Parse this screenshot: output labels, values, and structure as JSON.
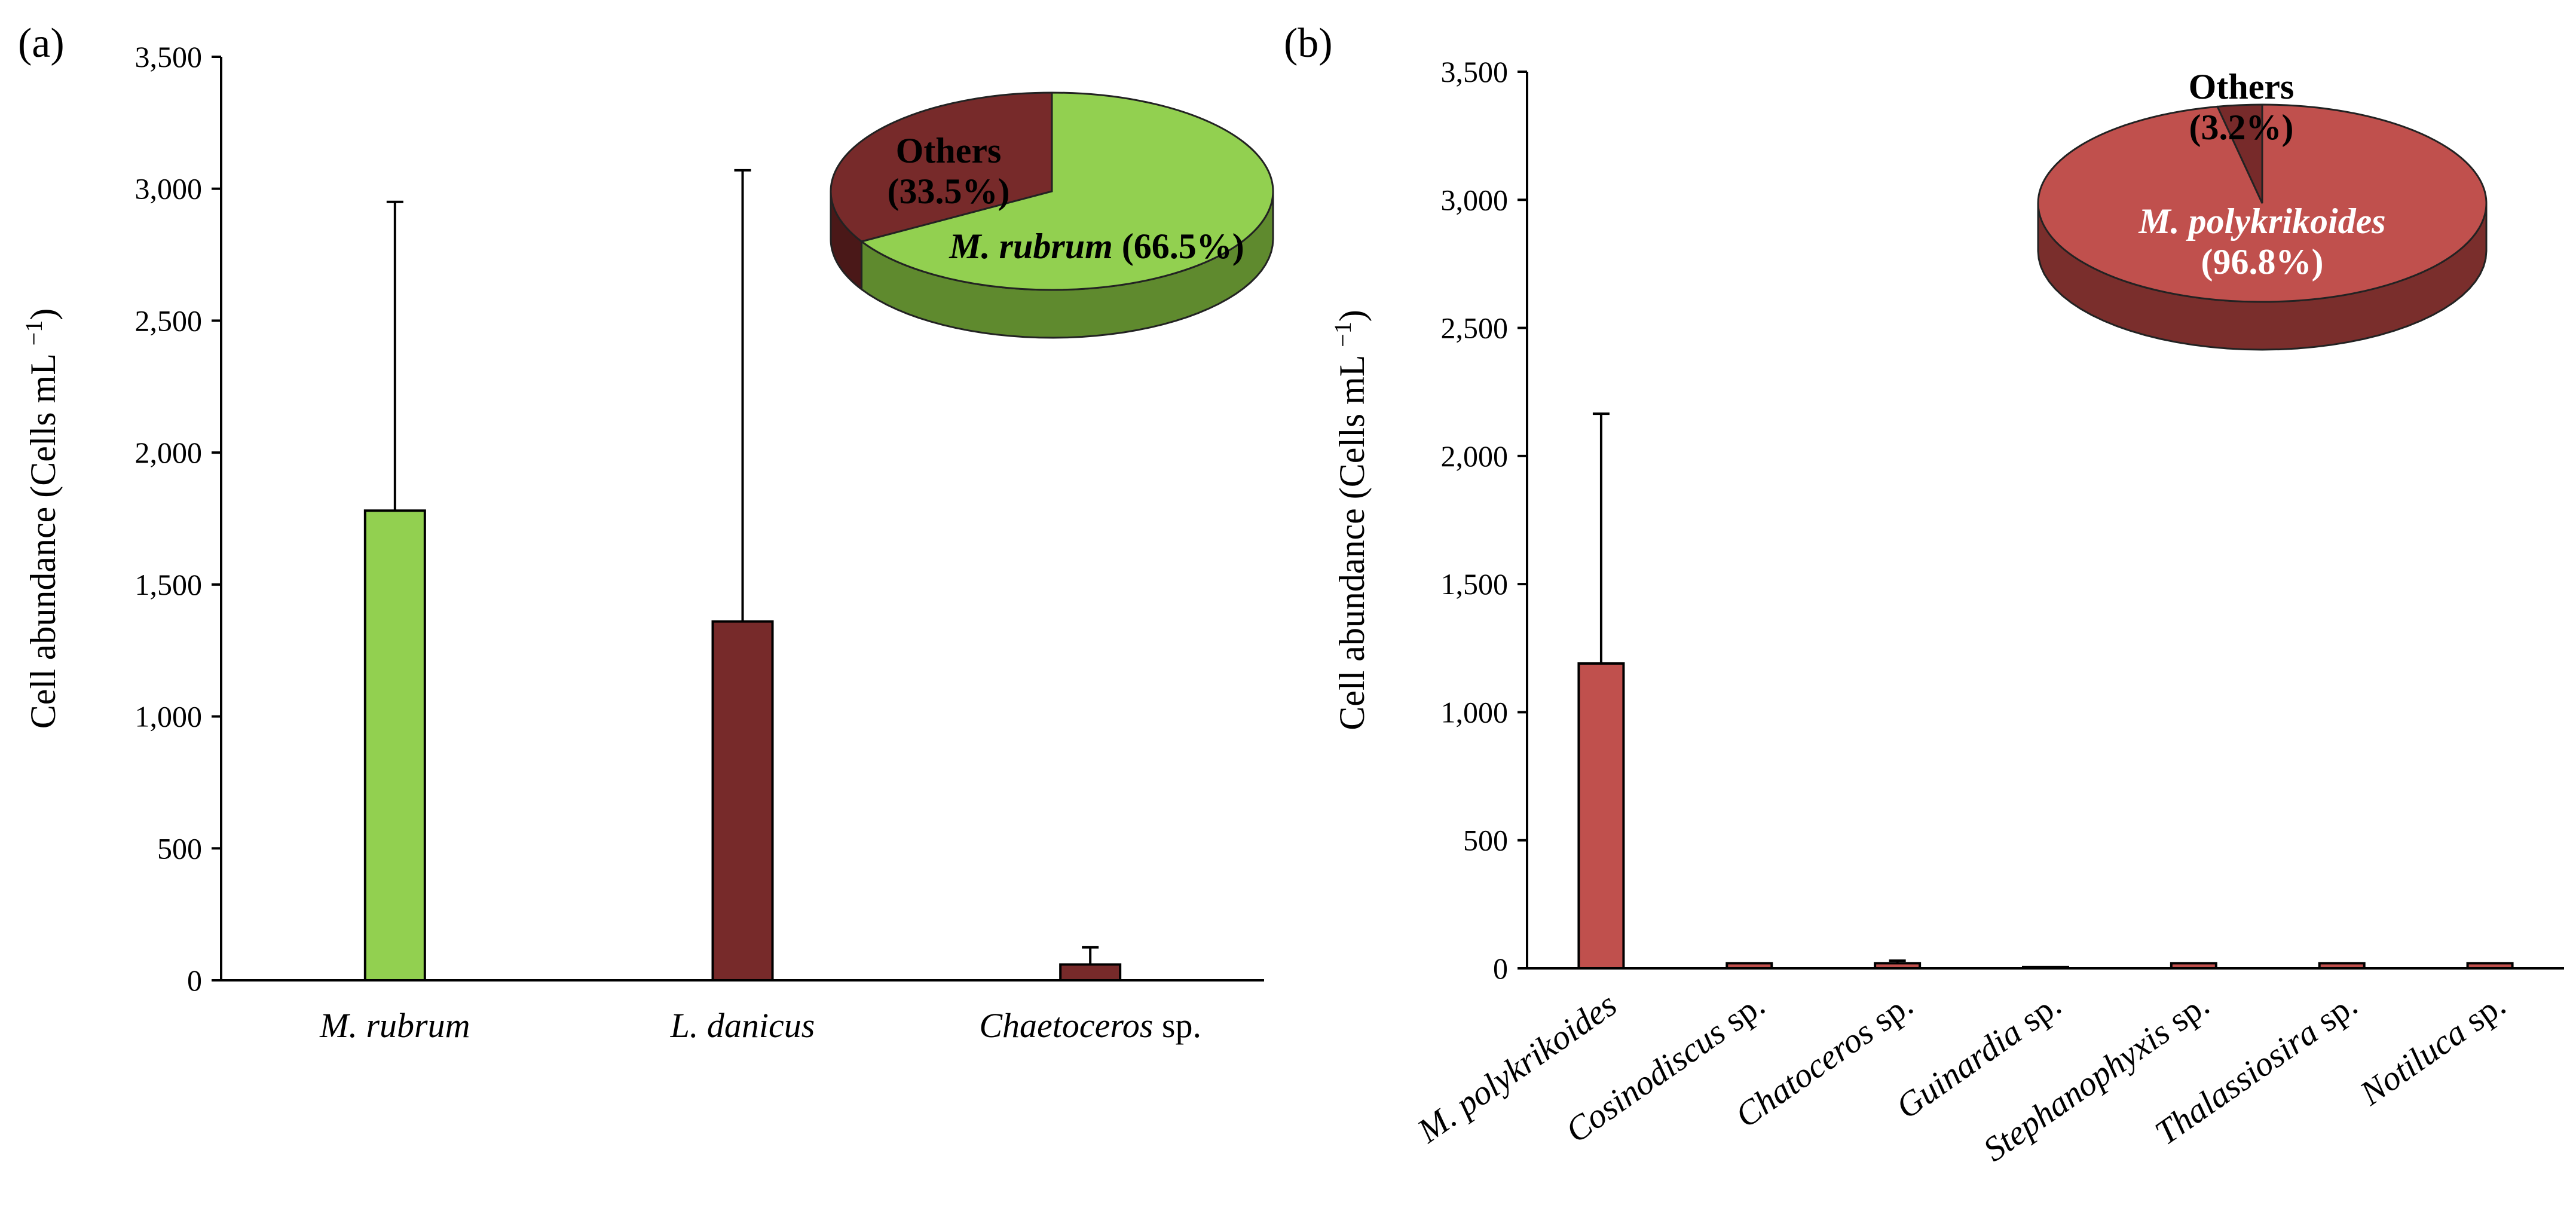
{
  "figure": {
    "panel_a": "(a)",
    "panel_b": "(b)"
  },
  "chart_data": [
    {
      "type": "bar",
      "panel": "(a)",
      "ylabel_main": "Cell abundance",
      "ylabel_unit": "(Cells mL",
      "ylabel_sup": "−1",
      "ylabel_close": ")",
      "ylim": [
        0,
        3500
      ],
      "yticks": [
        "0",
        "500",
        "1,000",
        "1,500",
        "2,000",
        "2,500",
        "3,000",
        "3,500"
      ],
      "categories": [
        {
          "italic": "M. rubrum",
          "plain": ""
        },
        {
          "italic": "L. danicus",
          "plain": ""
        },
        {
          "italic": "Chaetoceros",
          "plain": " sp."
        }
      ],
      "values": [
        1780,
        1360,
        60
      ],
      "errors": [
        1170,
        1710,
        65
      ],
      "colors": [
        "#92d050",
        "#772a2a",
        "#772a2a"
      ],
      "inset_pie": {
        "slices": [
          {
            "name_italic": "M. rubrum",
            "pct_text": "(66.5%)",
            "value": 66.5,
            "color": "#92d050",
            "side_color": "#5f8a2e"
          },
          {
            "name": "Others",
            "pct_text": "(33.5%)",
            "value": 33.5,
            "color": "#772a2a",
            "side_color": "#4a1818"
          }
        ]
      }
    },
    {
      "type": "bar",
      "panel": "(b)",
      "ylabel_main": "Cell abundance",
      "ylabel_unit": "(Cells mL",
      "ylabel_sup": "−1",
      "ylabel_close": ")",
      "ylim": [
        0,
        3500
      ],
      "yticks": [
        "0",
        "500",
        "1,000",
        "1,500",
        "2,000",
        "2,500",
        "3,000",
        "3,500"
      ],
      "categories": [
        {
          "italic": "M. polykrikoides",
          "plain": ""
        },
        {
          "italic": "Cosinodiscus",
          "plain": " sp."
        },
        {
          "italic": "Chatoceros",
          "plain": " sp."
        },
        {
          "italic": "Guinardia",
          "plain": " sp."
        },
        {
          "italic": "Stephanophyxis",
          "plain": " sp."
        },
        {
          "italic": "Thalassiosira",
          "plain": " sp."
        },
        {
          "italic": "Notiluca",
          "plain": " sp."
        }
      ],
      "values": [
        1190,
        20,
        20,
        5,
        20,
        20,
        20
      ],
      "errors": [
        975,
        0,
        10,
        0,
        0,
        0,
        0
      ],
      "colors": [
        "#c0504d",
        "#c0504d",
        "#c0504d",
        "#c0504d",
        "#c0504d",
        "#c0504d",
        "#c0504d"
      ],
      "inset_pie": {
        "slices": [
          {
            "name_italic": "M. polykrikoides",
            "pct_text": "(96.8%)",
            "value": 96.8,
            "color": "#c0504d",
            "side_color": "#7a2e2c"
          },
          {
            "name": "Others",
            "pct_text": "(3.2%)",
            "value": 3.2,
            "color": "#772a2a",
            "side_color": "#4a1818"
          }
        ]
      }
    }
  ]
}
